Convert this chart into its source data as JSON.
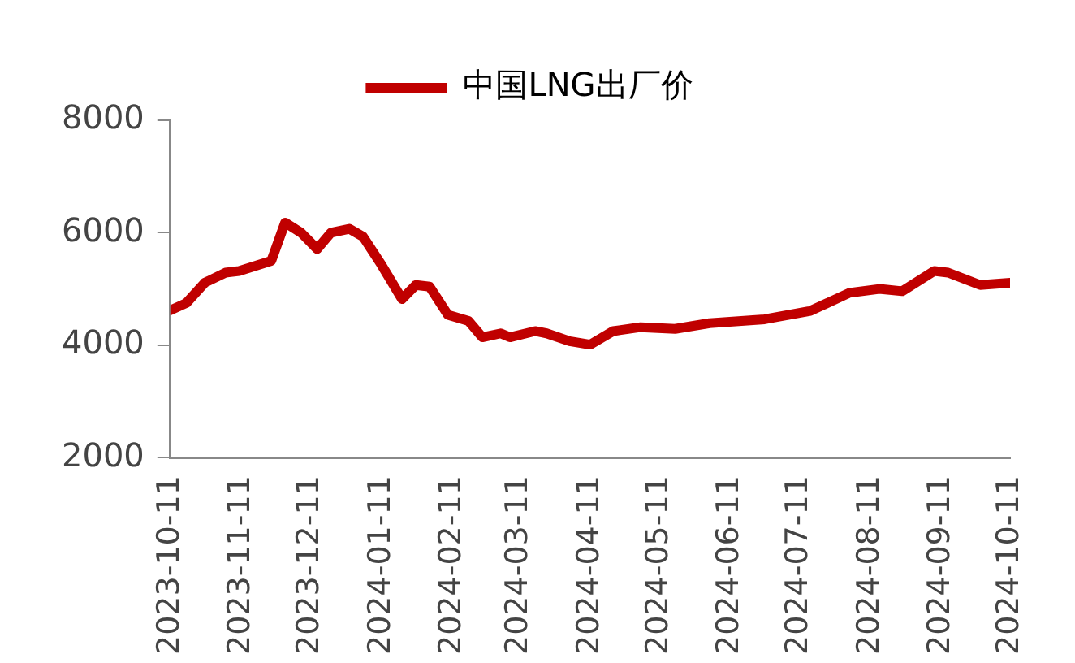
{
  "chart_data": {
    "type": "line",
    "x": [
      "2023-10-11",
      "2023-10-18",
      "2023-10-26",
      "2023-11-04",
      "2023-11-10",
      "2023-11-24",
      "2023-11-30",
      "2023-12-07",
      "2023-12-14",
      "2023-12-20",
      "2023-12-28",
      "2024-01-03",
      "2024-01-11",
      "2024-01-20",
      "2024-01-26",
      "2024-02-01",
      "2024-02-09",
      "2024-02-18",
      "2024-02-24",
      "2024-03-03",
      "2024-03-07",
      "2024-03-18",
      "2024-03-23",
      "2024-04-02",
      "2024-04-11",
      "2024-04-21",
      "2024-05-03",
      "2024-05-18",
      "2024-06-02",
      "2024-06-26",
      "2024-07-16",
      "2024-08-02",
      "2024-08-15",
      "2024-08-25",
      "2024-09-08",
      "2024-09-14",
      "2024-09-28",
      "2024-10-11"
    ],
    "series": [
      {
        "name": "中国LNG出厂价",
        "color": "#c00000",
        "values": [
          4620,
          4750,
          5110,
          5290,
          5320,
          5500,
          6180,
          6000,
          5710,
          6000,
          6070,
          5930,
          5430,
          4820,
          5070,
          5040,
          4540,
          4430,
          4140,
          4210,
          4140,
          4250,
          4210,
          4070,
          4010,
          4250,
          4320,
          4290,
          4390,
          4460,
          4610,
          4930,
          5000,
          4960,
          5320,
          5290,
          5070,
          5110
        ]
      }
    ],
    "xlim": [
      "2023-10-11",
      "2024-10-11"
    ],
    "xticks": [
      "2023-10-11",
      "2023-11-11",
      "2023-12-11",
      "2024-01-11",
      "2024-02-11",
      "2024-03-11",
      "2024-04-11",
      "2024-05-11",
      "2024-06-11",
      "2024-07-11",
      "2024-08-11",
      "2024-09-11",
      "2024-10-11"
    ],
    "ylim": [
      2000,
      8000
    ],
    "yticks": [
      2000,
      4000,
      6000,
      8000
    ],
    "grid": false,
    "legend": "top",
    "marker": "none",
    "line_style": "solid"
  }
}
